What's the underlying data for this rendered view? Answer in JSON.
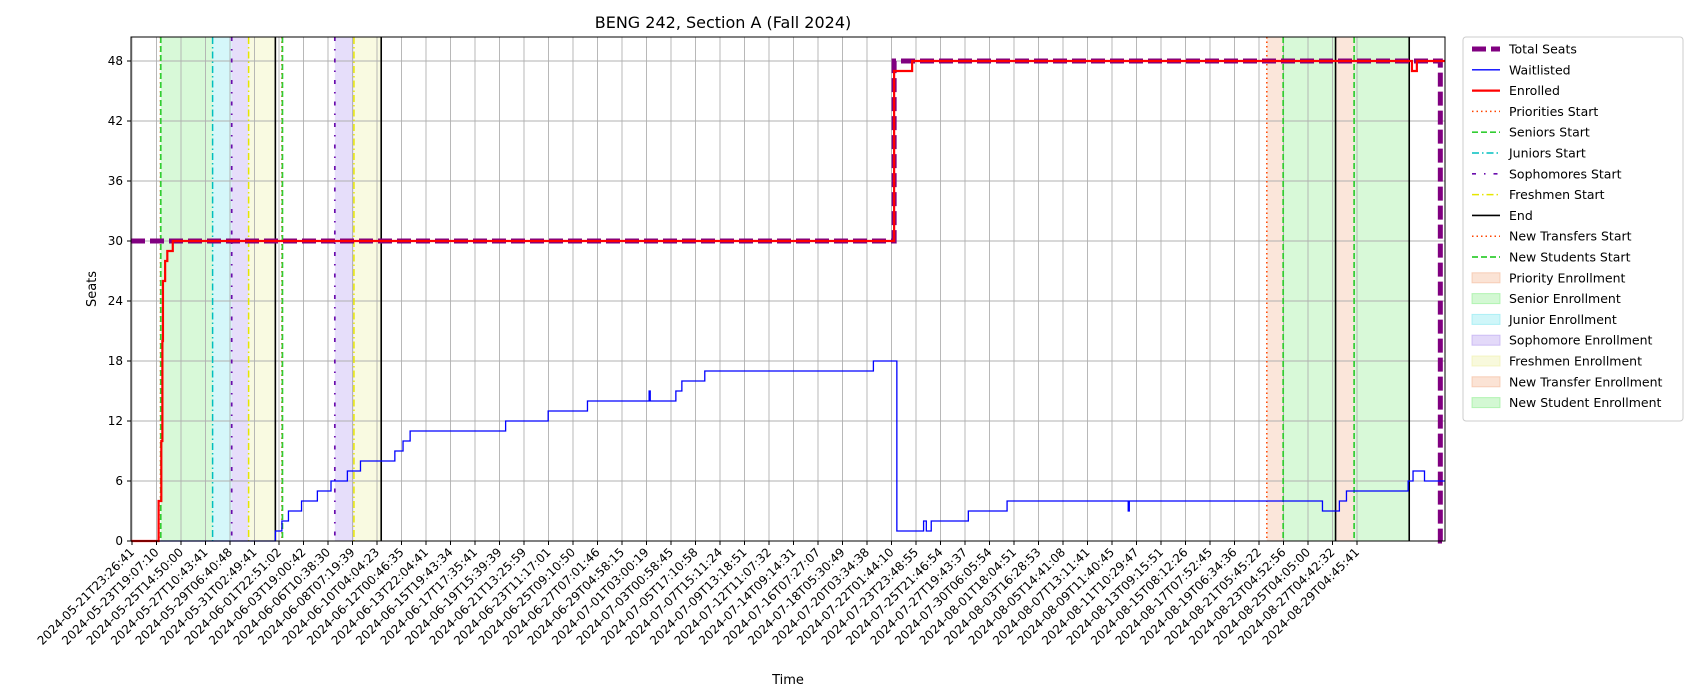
{
  "chart_data": {
    "type": "line",
    "title": "BENG 242, Section A (Fall 2024)",
    "xlabel": "Time",
    "ylabel": "Seats",
    "ylim": [
      0,
      50.4
    ],
    "yticks": [
      0,
      6,
      12,
      18,
      24,
      30,
      36,
      42,
      48
    ],
    "grid": true,
    "legend_position": "outside right",
    "x_range": [
      "2024-05-21T23:26:41",
      "2024-08-30T07:34:00"
    ],
    "xtick_labels": [
      "2024-05-21T23:26:41",
      "2024-05-23T19:07:10",
      "2024-05-25T14:50:00",
      "2024-05-27T10:43:41",
      "2024-05-29T06:40:48",
      "2024-05-31T02:49:41",
      "2024-06-01T22:51:02",
      "2024-06-03T19:00:42",
      "2024-06-06T10:38:30",
      "2024-06-08T07:19:39",
      "2024-06-10T04:04:23",
      "2024-06-12T00:46:35",
      "2024-06-13T22:04:41",
      "2024-06-15T19:43:34",
      "2024-06-17T17:35:41",
      "2024-06-19T15:39:39",
      "2024-06-21T13:25:59",
      "2024-06-23T11:17:01",
      "2024-06-25T09:10:50",
      "2024-06-27T07:01:46",
      "2024-06-29T04:58:15",
      "2024-07-01T03:00:19",
      "2024-07-03T00:58:45",
      "2024-07-05T17:10:58",
      "2024-07-07T15:11:24",
      "2024-07-09T13:18:51",
      "2024-07-12T11:07:32",
      "2024-07-14T09:14:31",
      "2024-07-16T07:27:07",
      "2024-07-18T05:30:49",
      "2024-07-20T03:34:38",
      "2024-07-22T01:44:10",
      "2024-07-23T23:48:55",
      "2024-07-25T21:46:54",
      "2024-07-27T19:43:37",
      "2024-07-30T06:05:54",
      "2024-08-01T18:04:51",
      "2024-08-03T16:28:53",
      "2024-08-05T14:41:08",
      "2024-08-07T13:11:41",
      "2024-08-09T11:40:45",
      "2024-08-11T10:29:47",
      "2024-08-13T09:15:51",
      "2024-08-15T08:12:26",
      "2024-08-17T07:52:45",
      "2024-08-19T06:34:36",
      "2024-08-21T05:45:22",
      "2024-08-23T04:52:56",
      "2024-08-25T04:05:00",
      "2024-08-27T04:42:32",
      "2024-08-29T04:45:41"
    ],
    "series": [
      {
        "name": "Total Seats",
        "color": "#800080",
        "style": "thick-dashed",
        "step": true,
        "x": [
          "2024-05-21T23:26:41",
          "2024-07-19T06:00:00",
          "2024-08-29T11:00:00",
          "2024-08-29T23:00:00",
          "2024-08-30T07:34:00"
        ],
        "y": [
          30,
          48,
          48,
          0,
          0
        ]
      },
      {
        "name": "Waitlisted",
        "color": "#0000ff",
        "style": "solid-thin",
        "step": true,
        "x": [
          "2024-05-21T23:26:41",
          "2024-06-02T00:00:00",
          "2024-06-02T12:00:00",
          "2024-06-03T00:00:00",
          "2024-06-04T00:00:00",
          "2024-06-05T05:00:00",
          "2024-06-06T06:00:00",
          "2024-06-07T12:00:00",
          "2024-06-08T12:00:00",
          "2024-06-11T03:00:00",
          "2024-06-11T18:00:00",
          "2024-06-12T07:00:00",
          "2024-06-19T14:00:00",
          "2024-06-22T20:00:00",
          "2024-06-25T20:00:00",
          "2024-06-30T13:00:00",
          "2024-06-30T15:00:00",
          "2024-07-02T14:00:00",
          "2024-07-03T01:00:00",
          "2024-07-04T19:00:00",
          "2024-07-17T16:00:00",
          "2024-07-19T11:00:00",
          "2024-07-21T12:00:00",
          "2024-07-21T17:00:00",
          "2024-07-22T02:00:00",
          "2024-07-24T22:00:00",
          "2024-07-27T21:00:00",
          "2024-08-06T03:00:00",
          "2024-08-06T05:00:00",
          "2024-08-20T23:00:00",
          "2024-08-22T06:00:00",
          "2024-08-22T19:00:00",
          "2024-08-27T12:00:00",
          "2024-08-27T21:00:00",
          "2024-08-28T18:00:00",
          "2024-08-30T07:34:00"
        ],
        "y": [
          0,
          1,
          2,
          3,
          4,
          5,
          6,
          7,
          8,
          9,
          10,
          11,
          12,
          13,
          14,
          15,
          14,
          15,
          16,
          17,
          18,
          1,
          2,
          1,
          2,
          3,
          4,
          3,
          4,
          3,
          4,
          5,
          6,
          7,
          6,
          6
        ]
      },
      {
        "name": "Enrolled",
        "color": "#ff0000",
        "style": "solid-thick",
        "step": true,
        "x": [
          "2024-05-21T23:26:41",
          "2024-05-24T02:00:00",
          "2024-05-24T07:00:00",
          "2024-05-24T09:00:00",
          "2024-05-24T10:00:00",
          "2024-05-24T14:00:00",
          "2024-05-24T18:00:00",
          "2024-05-25T04:00:00",
          "2024-07-19T06:00:00",
          "2024-07-20T15:00:00",
          "2024-08-27T19:00:00",
          "2024-08-28T04:00:00",
          "2024-08-30T07:34:00"
        ],
        "y": [
          0,
          4,
          10,
          20,
          26,
          28,
          29,
          30,
          47,
          48,
          47,
          48,
          48
        ]
      }
    ],
    "vlines": [
      {
        "name": "Priorities Start",
        "x": "2024-05-24T05:30:00",
        "color": "#ff4500",
        "style": "dotted"
      },
      {
        "name": "Seniors Start",
        "x": "2024-05-24T06:00:00",
        "color": "#32cd32",
        "style": "dashed"
      },
      {
        "name": "Juniors Start",
        "x": "2024-05-28T05:00:00",
        "color": "#00bfbf",
        "style": "dashdot"
      },
      {
        "name": "Sophomores Start",
        "x": "2024-05-29T16:00:00",
        "color": "#6a0dad",
        "style": "dashdot-dense"
      },
      {
        "name": "Freshmen Start",
        "x": "2024-05-30T23:00:00",
        "color": "#e6e600",
        "style": "dashdot"
      },
      {
        "name": "End",
        "x": "2024-06-02T00:00:00",
        "color": "#000000",
        "style": "solid"
      },
      {
        "name": "Priorities Start",
        "x": "2024-06-02T12:00:00",
        "color": "#ff4500",
        "style": "dotted"
      },
      {
        "name": "Seniors Start",
        "x": "2024-06-02T13:00:00",
        "color": "#32cd32",
        "style": "dashed"
      },
      {
        "name": "Sophomores Start",
        "x": "2024-06-06T13:00:00",
        "color": "#6a0dad",
        "style": "dashdot-dense"
      },
      {
        "name": "Freshmen Start",
        "x": "2024-06-08T00:00:00",
        "color": "#e6e600",
        "style": "dashdot"
      },
      {
        "name": "End",
        "x": "2024-06-10T02:00:00",
        "color": "#000000",
        "style": "solid"
      },
      {
        "name": "New Transfers Start",
        "x": "2024-08-16T17:00:00",
        "color": "#ff4500",
        "style": "dotted"
      },
      {
        "name": "New Students Start",
        "x": "2024-08-17T23:00:00",
        "color": "#32cd32",
        "style": "dashed"
      },
      {
        "name": "End",
        "x": "2024-08-21T23:00:00",
        "color": "#000000",
        "style": "solid"
      },
      {
        "name": "New Students Start",
        "x": "2024-08-23T09:00:00",
        "color": "#32cd32",
        "style": "dashed"
      },
      {
        "name": "End",
        "x": "2024-08-27T14:00:00",
        "color": "#000000",
        "style": "solid"
      }
    ],
    "spans": [
      {
        "name": "Senior Enrollment",
        "from": "2024-05-24T06:00:00",
        "to": "2024-05-28T05:00:00",
        "color": "#90ee90"
      },
      {
        "name": "Junior Enrollment",
        "from": "2024-05-28T05:00:00",
        "to": "2024-05-29T16:00:00",
        "color": "#87e8f0"
      },
      {
        "name": "Sophomore Enrollment",
        "from": "2024-05-29T16:00:00",
        "to": "2024-05-30T23:00:00",
        "color": "#b8a0f0"
      },
      {
        "name": "Freshmen Enrollment",
        "from": "2024-05-30T23:00:00",
        "to": "2024-06-02T00:00:00",
        "color": "#eef0a8"
      },
      {
        "name": "Sophomore Enrollment",
        "from": "2024-06-06T13:00:00",
        "to": "2024-06-08T00:00:00",
        "color": "#b8a0f0"
      },
      {
        "name": "Freshmen Enrollment",
        "from": "2024-06-08T00:00:00",
        "to": "2024-06-10T02:00:00",
        "color": "#eef0a8"
      },
      {
        "name": "New Transfer Enrollment",
        "from": "2024-08-16T17:00:00",
        "to": "2024-08-17T23:00:00",
        "color": "#f4b896"
      },
      {
        "name": "New Student Enrollment",
        "from": "2024-08-17T23:00:00",
        "to": "2024-08-21T23:00:00",
        "color": "#90ee90"
      },
      {
        "name": "New Transfer Enrollment",
        "from": "2024-08-21T23:00:00",
        "to": "2024-08-23T09:00:00",
        "color": "#f4b896"
      },
      {
        "name": "New Student Enrollment",
        "from": "2024-08-23T09:00:00",
        "to": "2024-08-27T14:00:00",
        "color": "#90ee90"
      }
    ],
    "legend": [
      {
        "label": "Total Seats",
        "kind": "line",
        "color": "#800080",
        "style": "thick-dashed"
      },
      {
        "label": "Waitlisted",
        "kind": "line",
        "color": "#0000ff",
        "style": "solid-thin"
      },
      {
        "label": "Enrolled",
        "kind": "line",
        "color": "#ff0000",
        "style": "solid-thick"
      },
      {
        "label": "Priorities Start",
        "kind": "line",
        "color": "#ff4500",
        "style": "dotted"
      },
      {
        "label": "Seniors Start",
        "kind": "line",
        "color": "#32cd32",
        "style": "dashed"
      },
      {
        "label": "Juniors Start",
        "kind": "line",
        "color": "#00bfbf",
        "style": "dashdot"
      },
      {
        "label": "Sophomores Start",
        "kind": "line",
        "color": "#6a0dad",
        "style": "dashdot-dense"
      },
      {
        "label": "Freshmen Start",
        "kind": "line",
        "color": "#e6e600",
        "style": "dashdot"
      },
      {
        "label": "End",
        "kind": "line",
        "color": "#000000",
        "style": "solid"
      },
      {
        "label": "New Transfers Start",
        "kind": "line",
        "color": "#ff4500",
        "style": "dotted"
      },
      {
        "label": "New Students Start",
        "kind": "line",
        "color": "#32cd32",
        "style": "dashed"
      },
      {
        "label": "Priority Enrollment",
        "kind": "patch",
        "color": "#f4b896"
      },
      {
        "label": "Senior Enrollment",
        "kind": "patch",
        "color": "#90ee90"
      },
      {
        "label": "Junior Enrollment",
        "kind": "patch",
        "color": "#87e8f0"
      },
      {
        "label": "Sophomore Enrollment",
        "kind": "patch",
        "color": "#b8a0f0"
      },
      {
        "label": "Freshmen Enrollment",
        "kind": "patch",
        "color": "#eef0a8"
      },
      {
        "label": "New Transfer Enrollment",
        "kind": "patch",
        "color": "#f4b896"
      },
      {
        "label": "New Student Enrollment",
        "kind": "patch",
        "color": "#90ee90"
      }
    ]
  }
}
